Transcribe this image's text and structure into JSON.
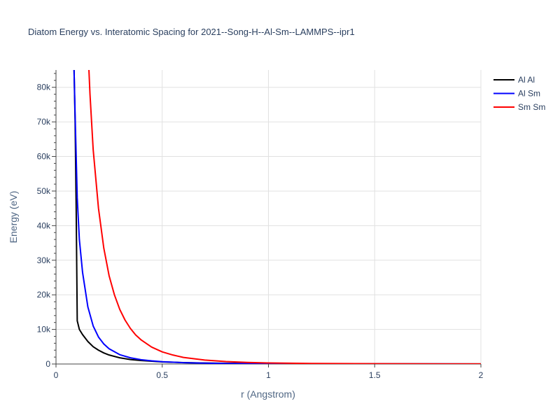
{
  "chart_data": {
    "type": "line",
    "title": "Diatom Energy vs. Interatomic Spacing for 2021--Song-H--Al-Sm--LAMMPS--ipr1",
    "xlabel": "r (Angstrom)",
    "ylabel": "Energy (eV)",
    "xlim": [
      0,
      2
    ],
    "ylim": [
      0,
      85000
    ],
    "x_ticks": [
      0,
      0.5,
      1,
      1.5,
      2
    ],
    "x_tick_labels": [
      "0",
      "0.5",
      "1",
      "1.5",
      "2"
    ],
    "y_ticks": [
      0,
      10000,
      20000,
      30000,
      40000,
      50000,
      60000,
      70000,
      80000
    ],
    "y_tick_labels": [
      "0",
      "10k",
      "20k",
      "30k",
      "40k",
      "50k",
      "60k",
      "70k",
      "80k"
    ],
    "grid": true,
    "legend_position": "top-right",
    "series": [
      {
        "name": "Al Al",
        "color": "#000000",
        "x": [
          0.085,
          0.09,
          0.095,
          0.1,
          0.11,
          0.125,
          0.15,
          0.175,
          0.2,
          0.225,
          0.25,
          0.3,
          0.35,
          0.4,
          0.5,
          0.6,
          0.7,
          0.8,
          1.0,
          1.2,
          1.5,
          2.0
        ],
        "y": [
          85000,
          70000,
          45000,
          12500,
          10000,
          8500,
          6500,
          5000,
          4000,
          3200,
          2600,
          1800,
          1300,
          1000,
          600,
          400,
          280,
          200,
          120,
          80,
          50,
          20
        ]
      },
      {
        "name": "Al Sm",
        "color": "#0000ff",
        "x": [
          0.085,
          0.09,
          0.1,
          0.11,
          0.125,
          0.15,
          0.175,
          0.2,
          0.225,
          0.25,
          0.3,
          0.35,
          0.4,
          0.45,
          0.5,
          0.6,
          0.7,
          0.8,
          1.0,
          1.2,
          1.5,
          2.0
        ],
        "y": [
          85000,
          72000,
          48000,
          36000,
          26500,
          16500,
          11000,
          7800,
          5800,
          4400,
          2700,
          1800,
          1250,
          900,
          650,
          380,
          240,
          160,
          80,
          50,
          30,
          10
        ]
      },
      {
        "name": "Sm Sm",
        "color": "#ff0000",
        "x": [
          0.155,
          0.16,
          0.175,
          0.2,
          0.225,
          0.25,
          0.275,
          0.3,
          0.325,
          0.35,
          0.375,
          0.4,
          0.45,
          0.5,
          0.55,
          0.6,
          0.7,
          0.8,
          0.9,
          1.0,
          1.2,
          1.5,
          2.0
        ],
        "y": [
          85000,
          78000,
          62000,
          45000,
          33500,
          25500,
          20000,
          15800,
          12700,
          10300,
          8400,
          7000,
          4900,
          3500,
          2600,
          1900,
          1150,
          700,
          450,
          300,
          150,
          70,
          20
        ]
      }
    ]
  }
}
